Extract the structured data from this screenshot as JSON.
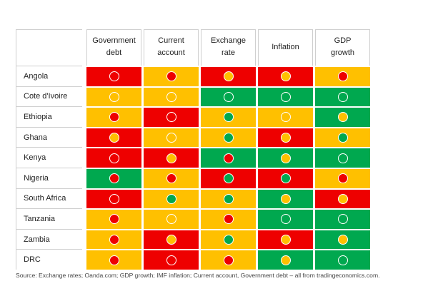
{
  "colors": {
    "red": "#ee0000",
    "amber": "#ffc000",
    "green": "#00a84f"
  },
  "columns": [
    "Government\ndebt",
    "Current\naccount",
    "Exchange\nrate",
    "Inflation",
    "GDP\ngrowth"
  ],
  "rows": [
    {
      "country": "Angola",
      "cells": [
        [
          "red",
          null
        ],
        [
          "amber",
          "red"
        ],
        [
          "red",
          "amber"
        ],
        [
          "red",
          "amber"
        ],
        [
          "amber",
          "red"
        ]
      ]
    },
    {
      "country": "Cote d'Ivoire",
      "cells": [
        [
          "amber",
          null
        ],
        [
          "amber",
          null
        ],
        [
          "green",
          null
        ],
        [
          "green",
          null
        ],
        [
          "green",
          null
        ]
      ]
    },
    {
      "country": "Ethiopia",
      "cells": [
        [
          "amber",
          "red"
        ],
        [
          "red",
          null
        ],
        [
          "amber",
          "green"
        ],
        [
          "amber",
          null
        ],
        [
          "green",
          "amber"
        ]
      ]
    },
    {
      "country": "Ghana",
      "cells": [
        [
          "red",
          "amber"
        ],
        [
          "amber",
          null
        ],
        [
          "amber",
          "green"
        ],
        [
          "red",
          "amber"
        ],
        [
          "amber",
          "green"
        ]
      ]
    },
    {
      "country": "Kenya",
      "cells": [
        [
          "red",
          null
        ],
        [
          "red",
          "amber"
        ],
        [
          "green",
          "red"
        ],
        [
          "green",
          "amber"
        ],
        [
          "green",
          null
        ]
      ]
    },
    {
      "country": "Nigeria",
      "cells": [
        [
          "green",
          "red"
        ],
        [
          "amber",
          "red"
        ],
        [
          "red",
          "green"
        ],
        [
          "red",
          "green"
        ],
        [
          "amber",
          "red"
        ]
      ]
    },
    {
      "country": "South Africa",
      "cells": [
        [
          "red",
          null
        ],
        [
          "amber",
          "green"
        ],
        [
          "amber",
          "green"
        ],
        [
          "green",
          "amber"
        ],
        [
          "red",
          "amber"
        ]
      ]
    },
    {
      "country": "Tanzania",
      "cells": [
        [
          "amber",
          "red"
        ],
        [
          "amber",
          null
        ],
        [
          "amber",
          "red"
        ],
        [
          "green",
          null
        ],
        [
          "green",
          null
        ]
      ]
    },
    {
      "country": "Zambia",
      "cells": [
        [
          "amber",
          "red"
        ],
        [
          "red",
          "amber"
        ],
        [
          "amber",
          "green"
        ],
        [
          "red",
          "amber"
        ],
        [
          "green",
          "amber"
        ]
      ]
    },
    {
      "country": "DRC",
      "cells": [
        [
          "amber",
          "red"
        ],
        [
          "red",
          null
        ],
        [
          "amber",
          "red"
        ],
        [
          "green",
          "amber"
        ],
        [
          "green",
          null
        ]
      ]
    }
  ],
  "source": "Source: Exchange rates; Oanda.com; GDP growth; IMF inflation; Current account, Government debt – all from tradingeconomics.com."
}
